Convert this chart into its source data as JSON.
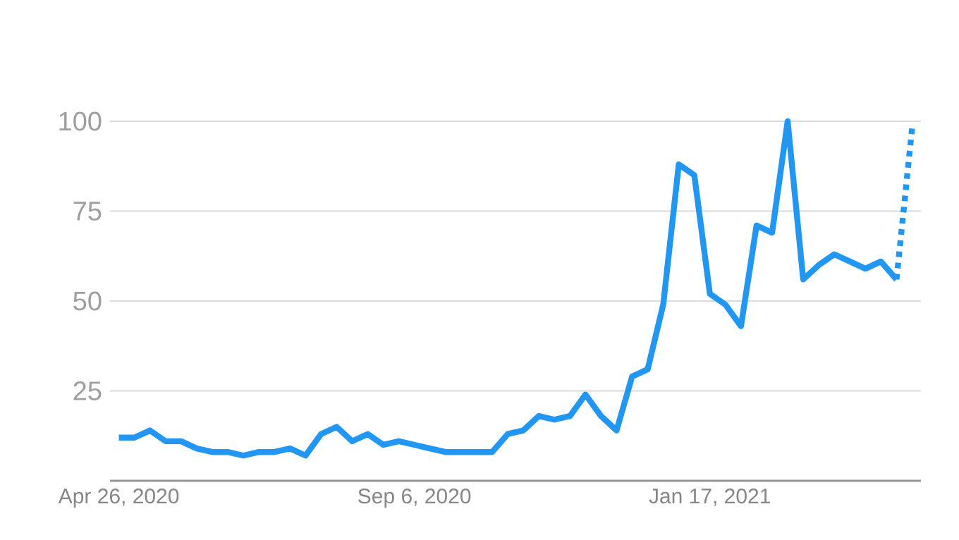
{
  "chart_data": {
    "type": "line",
    "grid": "y",
    "ylim": [
      0,
      100
    ],
    "yticks": [
      25,
      50,
      75,
      100
    ],
    "xlim": [
      "2020-04-22",
      "2021-04-22"
    ],
    "xticks": [
      {
        "value": "2020-04-26",
        "label": "Apr 26, 2020"
      },
      {
        "value": "2020-09-06",
        "label": "Sep 6, 2020"
      },
      {
        "value": "2021-01-17",
        "label": "Jan 17, 2021"
      }
    ],
    "series": [
      {
        "color": "#2196f3",
        "line_style": "solid",
        "x": [
          "2020-04-26",
          "2020-05-03",
          "2020-05-10",
          "2020-05-17",
          "2020-05-24",
          "2020-05-31",
          "2020-06-07",
          "2020-06-14",
          "2020-06-21",
          "2020-06-28",
          "2020-07-05",
          "2020-07-12",
          "2020-07-19",
          "2020-07-26",
          "2020-08-02",
          "2020-08-09",
          "2020-08-16",
          "2020-08-23",
          "2020-08-30",
          "2020-09-06",
          "2020-09-13",
          "2020-09-20",
          "2020-09-27",
          "2020-10-04",
          "2020-10-11",
          "2020-10-18",
          "2020-10-25",
          "2020-11-01",
          "2020-11-08",
          "2020-11-15",
          "2020-11-22",
          "2020-11-29",
          "2020-12-06",
          "2020-12-13",
          "2020-12-20",
          "2020-12-27",
          "2021-01-03",
          "2021-01-10",
          "2021-01-17",
          "2021-01-24",
          "2021-01-31",
          "2021-02-07",
          "2021-02-14",
          "2021-02-21",
          "2021-02-28",
          "2021-03-07",
          "2021-03-14",
          "2021-03-21",
          "2021-03-28",
          "2021-04-04",
          "2021-04-11"
        ],
        "values": [
          12,
          12,
          14,
          11,
          11,
          9,
          8,
          8,
          7,
          8,
          8,
          9,
          7,
          13,
          15,
          11,
          13,
          10,
          11,
          10,
          9,
          8,
          8,
          8,
          8,
          13,
          14,
          18,
          17,
          18,
          24,
          18,
          14,
          29,
          31,
          49,
          88,
          85,
          52,
          49,
          43,
          71,
          69,
          100,
          56,
          60,
          63,
          61,
          59,
          61,
          56
        ]
      },
      {
        "color": "#2196f3",
        "line_style": "dotted",
        "x": [
          "2021-04-11",
          "2021-04-18"
        ],
        "values": [
          56,
          98
        ]
      }
    ]
  }
}
